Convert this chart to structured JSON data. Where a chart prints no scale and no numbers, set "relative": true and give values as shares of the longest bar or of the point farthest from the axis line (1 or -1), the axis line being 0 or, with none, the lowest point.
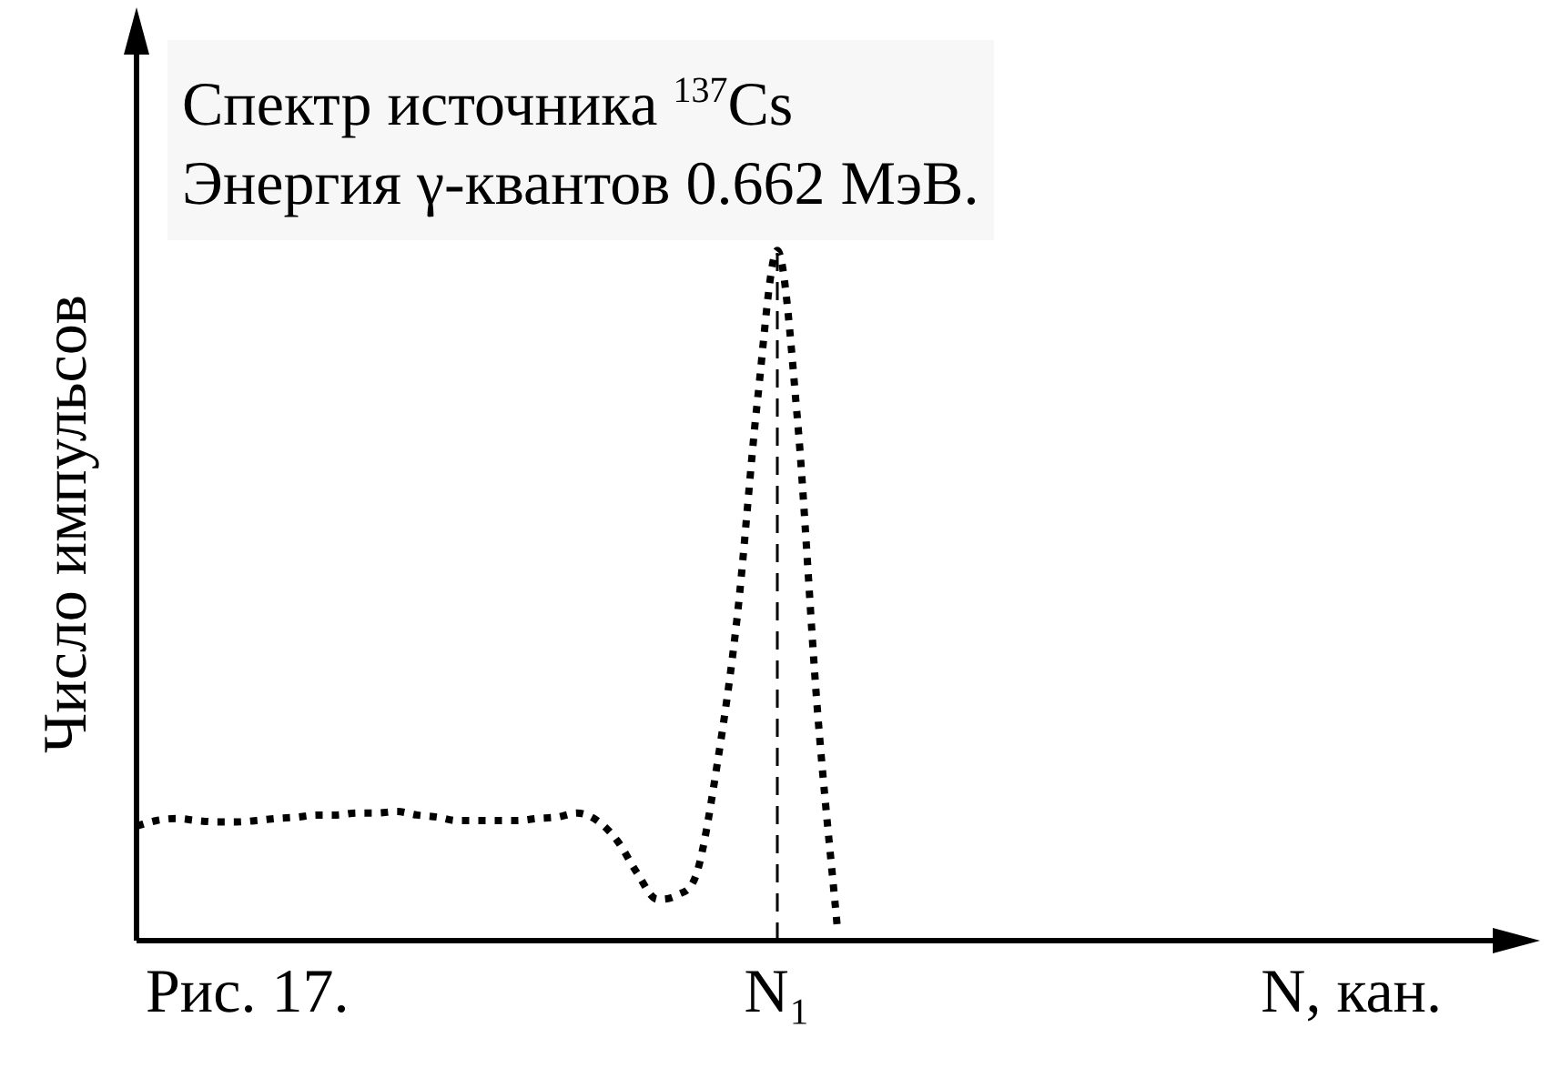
{
  "chart_data": {
    "type": "line",
    "title": "Спектр источника $^{137}$Cs",
    "subtitle": "Энергия γ-квантов 0.662 МэВ.",
    "xlabel": "N, кан.",
    "ylabel": "Число импульсов",
    "annotations": [
      "Рис. 17.",
      "N₁"
    ],
    "relative": true,
    "legend": false,
    "grid": false,
    "line_style": "dotted",
    "marker": "none",
    "categories": [
      null,
      null,
      null,
      null,
      null,
      null,
      null,
      null,
      null,
      null,
      null,
      null,
      null,
      null,
      null,
      null,
      null,
      null,
      null,
      null,
      null,
      null,
      null,
      null,
      null,
      null,
      null,
      null,
      null,
      null,
      null,
      null,
      null,
      null,
      null,
      null,
      null,
      null,
      null,
      null,
      null,
      null,
      null,
      null,
      null,
      null,
      null,
      null,
      null,
      null,
      null,
      null,
      null,
      null,
      null,
      null,
      null,
      null,
      null,
      null,
      null,
      null,
      null,
      null,
      null,
      null,
      null,
      null,
      null,
      null
    ],
    "series": [
      {
        "color": "#000000",
        "values": [
          0.166,
          0.174,
          0.177,
          0.174,
          0.172,
          0.172,
          0.174,
          0.177,
          0.179,
          0.182,
          0.182,
          0.185,
          0.185,
          0.187,
          0.182,
          0.179,
          0.174,
          0.174,
          0.174,
          0.174,
          0.177,
          0.179,
          0.185,
          0.174,
          0.145,
          0.098,
          0.06,
          0.066,
          0.1,
          0.256,
          0.47,
          0.78,
          1,
          0.757,
          0.335,
          0.018,
          null,
          null,
          null,
          null,
          null,
          null,
          null,
          null,
          null,
          null,
          null,
          null,
          null,
          null,
          null,
          null,
          null,
          null,
          null,
          null,
          null,
          null,
          null,
          null,
          null,
          null,
          null,
          null,
          null,
          null,
          null,
          null,
          null,
          null
        ]
      }
    ]
  }
}
